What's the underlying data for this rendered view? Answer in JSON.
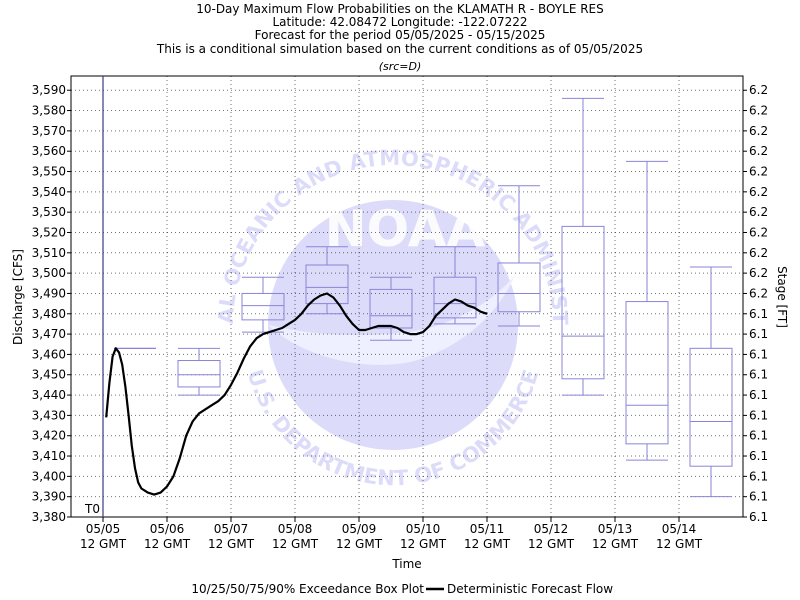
{
  "titles": {
    "line1": "10-Day Maximum Flow Probabilities on the KLAMATH R - BOYLE RES",
    "line2": "Latitude: 42.08472 Longitude: -122.07222",
    "line3": "Forecast for the period 05/05/2025 - 05/15/2025",
    "line4": "This is a conditional simulation based on the current conditions as of 05/05/2025",
    "line5": "(src=D)"
  },
  "watermark": {
    "ring_top": "NATIONAL OCEANIC AND ATMOSPHERIC ADMINISTRATION",
    "ring_bottom": "U.S. DEPARTMENT OF COMMERCE",
    "center": "NOAA",
    "color": "#dcdcfa"
  },
  "legend": {
    "box_label": "10/25/50/75/90% Exceedance Box Plot",
    "line_label": "Deterministic Forecast Flow"
  },
  "t0_label": "T0",
  "chart_data": {
    "type": "box-and-line",
    "xlabel": "Time",
    "ylabel": "Discharge [CFS]",
    "y2label": "Stage [FT]",
    "ylim": [
      3380,
      3597
    ],
    "y_ticks": [
      "3,380",
      "3,390",
      "3,400",
      "3,410",
      "3,420",
      "3,430",
      "3,440",
      "3,450",
      "3,460",
      "3,470",
      "3,480",
      "3,490",
      "3,500",
      "3,510",
      "3,520",
      "3,530",
      "3,540",
      "3,550",
      "3,560",
      "3,570",
      "3,580",
      "3,590"
    ],
    "y2_ticks": [
      "6.1",
      "6.1",
      "6.1",
      "6.1",
      "6.1",
      "6.1",
      "6.1",
      "6.1",
      "6.1",
      "6.1",
      "6.1",
      "6.2",
      "6.2",
      "6.2",
      "6.2",
      "6.2",
      "6.2",
      "6.2",
      "6.2",
      "6.2",
      "6.2",
      "6.2"
    ],
    "x_domain_days": [
      -0.5,
      10.0
    ],
    "x_ticks": [
      {
        "day": 0,
        "date": "05/05",
        "time": "12 GMT"
      },
      {
        "day": 1,
        "date": "05/06",
        "time": "12 GMT"
      },
      {
        "day": 2,
        "date": "05/07",
        "time": "12 GMT"
      },
      {
        "day": 3,
        "date": "05/08",
        "time": "12 GMT"
      },
      {
        "day": 4,
        "date": "05/09",
        "time": "12 GMT"
      },
      {
        "day": 5,
        "date": "05/10",
        "time": "12 GMT"
      },
      {
        "day": 6,
        "date": "05/11",
        "time": "12 GMT"
      },
      {
        "day": 7,
        "date": "05/12",
        "time": "12 GMT"
      },
      {
        "day": 8,
        "date": "05/13",
        "time": "12 GMT"
      },
      {
        "day": 9,
        "date": "05/14",
        "time": "12 GMT"
      }
    ],
    "t0_day": 0.0,
    "boxes": [
      {
        "day": 0.5,
        "p10": 3463,
        "p25": 3463,
        "p50": 3463,
        "p75": 3463,
        "p90": 3463
      },
      {
        "day": 1.5,
        "p10": 3440,
        "p25": 3444,
        "p50": 3450,
        "p75": 3457,
        "p90": 3463
      },
      {
        "day": 2.5,
        "p10": 3471,
        "p25": 3477,
        "p50": 3484,
        "p75": 3490,
        "p90": 3498
      },
      {
        "day": 3.5,
        "p10": 3480,
        "p25": 3485,
        "p50": 3493,
        "p75": 3504,
        "p90": 3513
      },
      {
        "day": 4.5,
        "p10": 3467,
        "p25": 3473,
        "p50": 3479,
        "p75": 3492,
        "p90": 3498
      },
      {
        "day": 5.5,
        "p10": 3475,
        "p25": 3478,
        "p50": 3485,
        "p75": 3498,
        "p90": 3513
      },
      {
        "day": 6.5,
        "p10": 3474,
        "p25": 3481,
        "p50": 3490,
        "p75": 3505,
        "p90": 3543
      },
      {
        "day": 7.5,
        "p10": 3440,
        "p25": 3448,
        "p50": 3469,
        "p75": 3523,
        "p90": 3586
      },
      {
        "day": 8.5,
        "p10": 3408,
        "p25": 3416,
        "p50": 3435,
        "p75": 3486,
        "p90": 3555
      },
      {
        "day": 9.5,
        "p10": 3390,
        "p25": 3405,
        "p50": 3427,
        "p75": 3463,
        "p90": 3503
      }
    ],
    "deterministic": {
      "name": "Deterministic Forecast Flow",
      "points": [
        [
          0.05,
          3429
        ],
        [
          0.1,
          3446
        ],
        [
          0.15,
          3459
        ],
        [
          0.2,
          3463
        ],
        [
          0.25,
          3461
        ],
        [
          0.3,
          3455
        ],
        [
          0.35,
          3444
        ],
        [
          0.4,
          3430
        ],
        [
          0.45,
          3415
        ],
        [
          0.5,
          3404
        ],
        [
          0.55,
          3397
        ],
        [
          0.6,
          3394
        ],
        [
          0.7,
          3392
        ],
        [
          0.8,
          3391
        ],
        [
          0.9,
          3392
        ],
        [
          1.0,
          3395
        ],
        [
          1.1,
          3400
        ],
        [
          1.2,
          3409
        ],
        [
          1.3,
          3420
        ],
        [
          1.4,
          3427
        ],
        [
          1.5,
          3431
        ],
        [
          1.6,
          3433
        ],
        [
          1.7,
          3435
        ],
        [
          1.8,
          3437
        ],
        [
          1.9,
          3440
        ],
        [
          2.0,
          3445
        ],
        [
          2.1,
          3451
        ],
        [
          2.2,
          3458
        ],
        [
          2.3,
          3464
        ],
        [
          2.4,
          3468
        ],
        [
          2.5,
          3470
        ],
        [
          2.6,
          3471
        ],
        [
          2.7,
          3472
        ],
        [
          2.8,
          3473
        ],
        [
          2.9,
          3475
        ],
        [
          3.0,
          3477
        ],
        [
          3.1,
          3480
        ],
        [
          3.2,
          3484
        ],
        [
          3.3,
          3487
        ],
        [
          3.4,
          3489
        ],
        [
          3.5,
          3490
        ],
        [
          3.6,
          3488
        ],
        [
          3.7,
          3484
        ],
        [
          3.8,
          3479
        ],
        [
          3.9,
          3475
        ],
        [
          4.0,
          3472
        ],
        [
          4.1,
          3472
        ],
        [
          4.2,
          3473
        ],
        [
          4.3,
          3474
        ],
        [
          4.4,
          3474
        ],
        [
          4.5,
          3474
        ],
        [
          4.6,
          3473
        ],
        [
          4.7,
          3471
        ],
        [
          4.8,
          3470
        ],
        [
          4.9,
          3470
        ],
        [
          5.0,
          3471
        ],
        [
          5.1,
          3474
        ],
        [
          5.2,
          3479
        ],
        [
          5.3,
          3482
        ],
        [
          5.4,
          3485
        ],
        [
          5.5,
          3487
        ],
        [
          5.6,
          3486
        ],
        [
          5.7,
          3484
        ],
        [
          5.8,
          3483
        ],
        [
          5.9,
          3481
        ],
        [
          6.0,
          3480
        ]
      ]
    }
  }
}
